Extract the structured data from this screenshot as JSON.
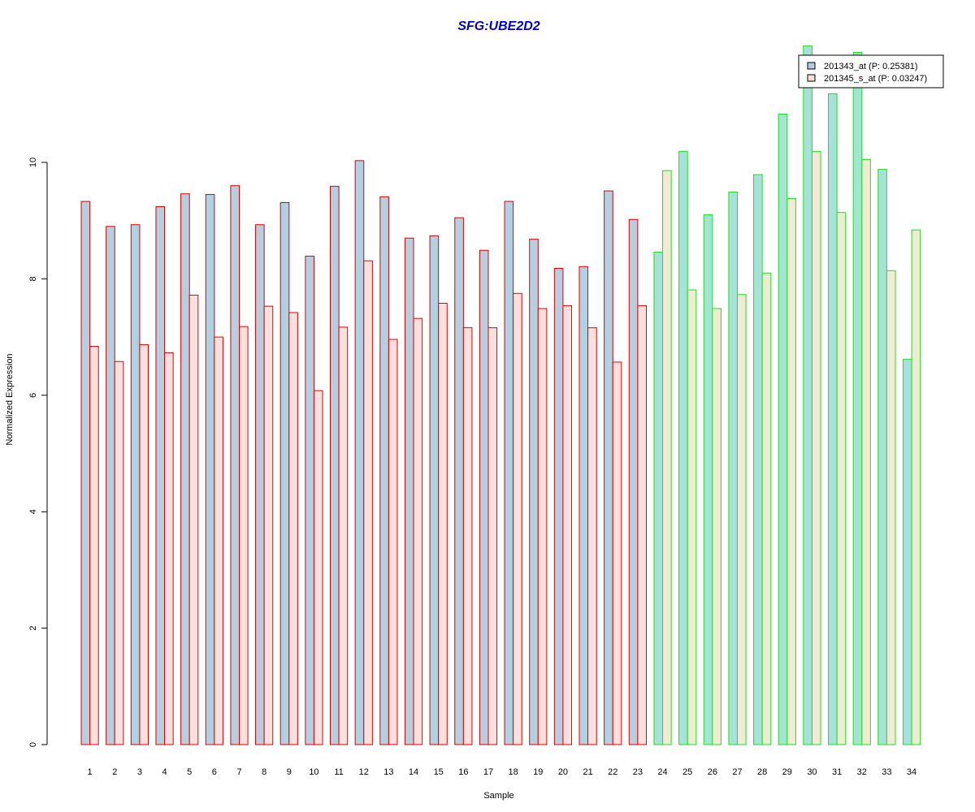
{
  "chart_data": {
    "type": "bar",
    "title": "SFG:UBE2D2",
    "xlabel": "Sample",
    "ylabel": "Normalized Expression",
    "ylim": [
      0,
      12
    ],
    "yticks": [
      0,
      2,
      4,
      6,
      8,
      10
    ],
    "categories": [
      "1",
      "2",
      "3",
      "4",
      "5",
      "6",
      "7",
      "8",
      "9",
      "10",
      "11",
      "12",
      "13",
      "14",
      "15",
      "16",
      "17",
      "18",
      "19",
      "20",
      "21",
      "22",
      "23",
      "24",
      "25",
      "26",
      "27",
      "28",
      "29",
      "30",
      "31",
      "32",
      "33",
      "34"
    ],
    "group_split_after": 23,
    "series": [
      {
        "name": "201343_at (P: 0.25381)",
        "values": [
          9.33,
          8.9,
          8.93,
          9.24,
          9.46,
          9.45,
          9.6,
          8.93,
          9.31,
          8.39,
          9.59,
          10.03,
          9.41,
          8.7,
          8.74,
          9.05,
          8.49,
          9.33,
          8.68,
          8.18,
          8.21,
          9.51,
          9.02,
          8.46,
          10.19,
          9.1,
          9.49,
          9.79,
          10.83,
          12.0,
          11.18,
          11.89,
          9.88,
          6.62
        ]
      },
      {
        "name": "201345_s_at (P: 0.03247)",
        "values": [
          6.84,
          6.58,
          6.87,
          6.73,
          7.72,
          7.0,
          7.18,
          7.53,
          7.42,
          6.08,
          7.17,
          8.31,
          6.96,
          7.32,
          7.58,
          7.16,
          7.16,
          7.75,
          7.49,
          7.54,
          7.16,
          6.57,
          7.54,
          9.86,
          7.81,
          7.49,
          7.73,
          8.1,
          9.38,
          10.19,
          9.14,
          10.05,
          8.14,
          8.84
        ]
      }
    ],
    "colors": {
      "title": "#0000cc",
      "series1_fill_group1": "#b4cfe0",
      "series2_fill_group1": "#fde0dd",
      "series1_fill_group2": "#a6e3d7",
      "series2_fill_group2": "#f0ecd4",
      "border_group1": "#e00000",
      "border_group2": "#22dd22",
      "legend_swatch_1": "#b4cfe0",
      "legend_swatch_2": "#fde0dd"
    },
    "grid": false,
    "legend_position": "top-right"
  }
}
